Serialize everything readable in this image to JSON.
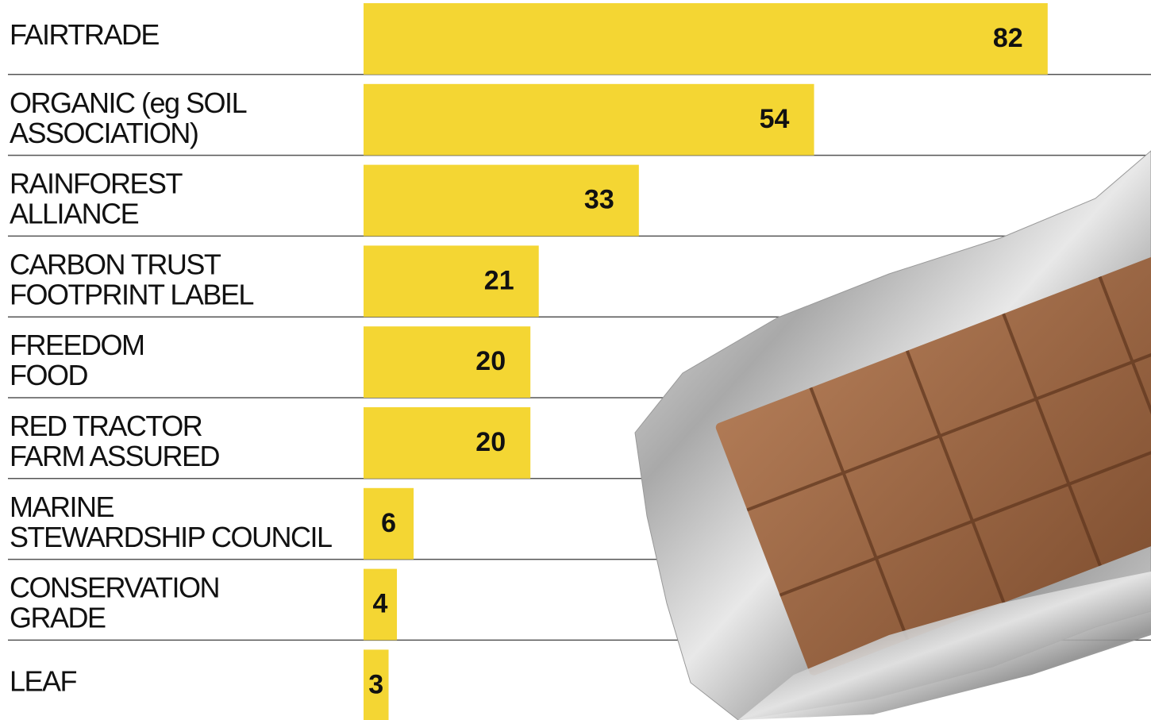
{
  "chart_data": {
    "type": "bar",
    "orientation": "horizontal",
    "categories": [
      "FAIRTRADE",
      "ORGANIC (eg SOIL\nASSOCIATION)",
      "RAINFOREST\nALLIANCE",
      "CARBON TRUST\nFOOTPRINT LABEL",
      "FREEDOM\nFOOD",
      "RED TRACTOR\nFARM ASSURED",
      "MARINE\nSTEWARDSHIP COUNCIL",
      "CONSERVATION\nGRADE",
      "LEAF"
    ],
    "values": [
      82,
      54,
      33,
      21,
      20,
      20,
      6,
      4,
      3
    ],
    "color": "#f4d633"
  }
}
